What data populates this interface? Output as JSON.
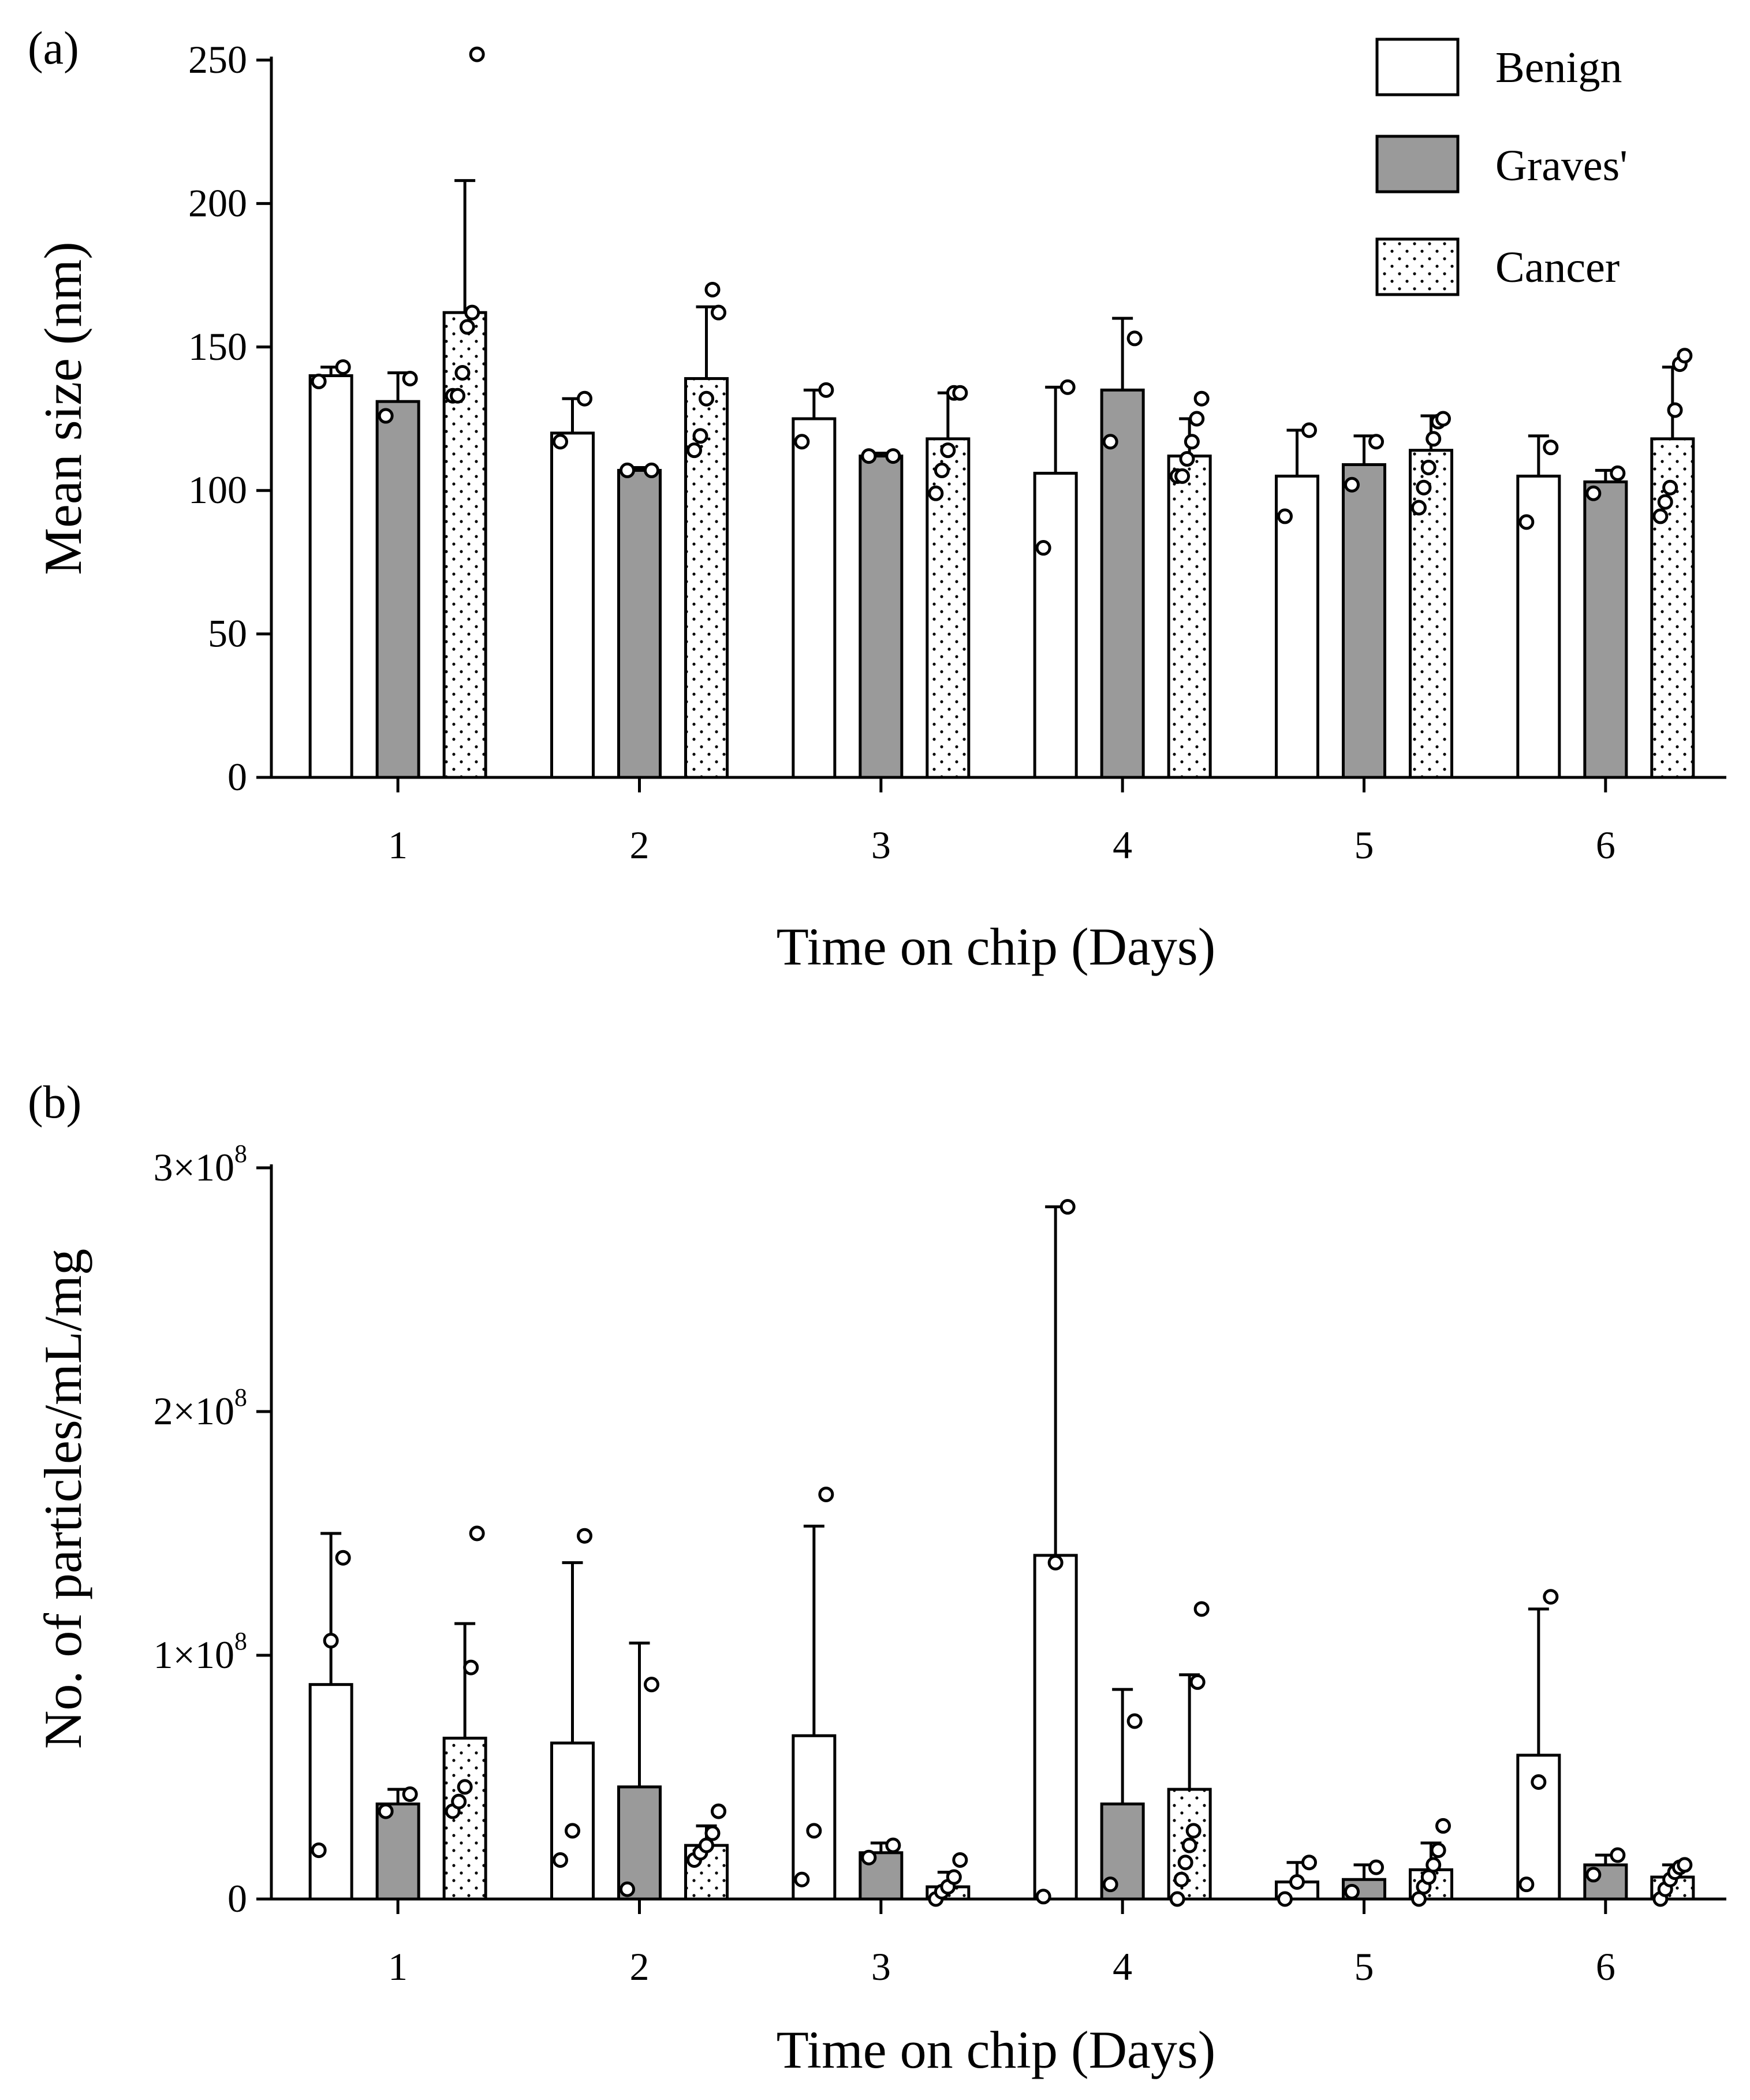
{
  "colors": {
    "benign": "#ffffff",
    "graves": "#9a9a9a",
    "cancer": "#ffffff",
    "stroke": "#000000"
  },
  "legend": [
    {
      "key": "benign",
      "label": "Benign",
      "pattern": "solid-white"
    },
    {
      "key": "graves",
      "label": "Graves'",
      "pattern": "solid-gray"
    },
    {
      "key": "cancer",
      "label": "Cancer",
      "pattern": "dotted"
    }
  ],
  "chart_data": [
    {
      "panel_label": "(a)",
      "type": "bar",
      "xlabel": "Time on chip (Days)",
      "ylabel": "Mean size (nm)",
      "categories": [
        "1",
        "2",
        "3",
        "4",
        "5",
        "6"
      ],
      "ylim": [
        0,
        250
      ],
      "yticks": [
        0,
        50,
        100,
        150,
        200,
        250
      ],
      "ytick_labels": [
        "0",
        "50",
        "100",
        "150",
        "200",
        "250"
      ],
      "series": [
        {
          "name": "Benign",
          "key": "benign",
          "values": [
            140,
            120,
            125,
            106,
            105,
            105
          ],
          "err_upper": [
            143,
            132,
            135,
            136,
            121,
            119
          ],
          "points": [
            [
              138,
              143
            ],
            [
              117,
              132
            ],
            [
              117,
              135
            ],
            [
              80,
              136
            ],
            [
              91,
              121
            ],
            [
              89,
              115
            ]
          ]
        },
        {
          "name": "Graves'",
          "key": "graves",
          "values": [
            131,
            107,
            112,
            135,
            109,
            103
          ],
          "err_upper": [
            141,
            108,
            113,
            160,
            119,
            107
          ],
          "points": [
            [
              126,
              139
            ],
            [
              107,
              107
            ],
            [
              112,
              112
            ],
            [
              117,
              153
            ],
            [
              102,
              117
            ],
            [
              99,
              106
            ]
          ]
        },
        {
          "name": "Cancer",
          "key": "cancer",
          "values": [
            162,
            139,
            118,
            112,
            114,
            118
          ],
          "err_upper": [
            208,
            164,
            134,
            125,
            126,
            143
          ],
          "points": [
            [
              133,
              133,
              141,
              157,
              162,
              252
            ],
            [
              114,
              119,
              132,
              170,
              162
            ],
            [
              99,
              107,
              114,
              134,
              134
            ],
            [
              105,
              105,
              111,
              117,
              125,
              132
            ],
            [
              94,
              101,
              108,
              118,
              124,
              125
            ],
            [
              91,
              96,
              101,
              128,
              144,
              147
            ]
          ]
        }
      ]
    },
    {
      "panel_label": "(b)",
      "type": "bar",
      "xlabel": "Time on chip (Days)",
      "ylabel": "No. of particles/mL/mg",
      "categories": [
        "1",
        "2",
        "3",
        "4",
        "5",
        "6"
      ],
      "ylim": [
        0,
        300000000
      ],
      "yticks": [
        0,
        100000000,
        200000000,
        300000000
      ],
      "ytick_labels": [
        {
          "base": "0",
          "exp": ""
        },
        {
          "base": "1×10",
          "exp": "8"
        },
        {
          "base": "2×10",
          "exp": "8"
        },
        {
          "base": "3×10",
          "exp": "8"
        }
      ],
      "series": [
        {
          "name": "Benign",
          "key": "benign",
          "values": [
            88000000,
            64000000,
            67000000,
            141000000,
            7000000,
            59000000
          ],
          "err_upper": [
            150000000,
            138000000,
            153000000,
            284000000,
            15000000,
            119000000
          ],
          "points": [
            [
              20000000,
              106000000,
              140000000
            ],
            [
              16000000,
              28000000,
              149000000
            ],
            [
              8000000,
              28000000,
              166000000
            ],
            [
              1000000,
              138000000,
              284000000
            ],
            [
              0,
              7000000,
              15000000
            ],
            [
              6000000,
              48000000,
              124000000
            ]
          ]
        },
        {
          "name": "Graves'",
          "key": "graves",
          "values": [
            39000000,
            46000000,
            19000000,
            39000000,
            8000000,
            14000000
          ],
          "err_upper": [
            45000000,
            105000000,
            23000000,
            86000000,
            14000000,
            18000000
          ],
          "points": [
            [
              36000000,
              43000000
            ],
            [
              4000000,
              88000000
            ],
            [
              17000000,
              22000000
            ],
            [
              6000000,
              73000000
            ],
            [
              3000000,
              13000000
            ],
            [
              10000000,
              18000000
            ]
          ]
        },
        {
          "name": "Cancer",
          "key": "cancer",
          "values": [
            66000000,
            22000000,
            5000000,
            45000000,
            12000000,
            9000000
          ],
          "err_upper": [
            113000000,
            30000000,
            11000000,
            92000000,
            23000000,
            14000000
          ],
          "points": [
            [
              36000000,
              40000000,
              46000000,
              95000000,
              150000000
            ],
            [
              16000000,
              19000000,
              22000000,
              27000000,
              36000000
            ],
            [
              0,
              3000000,
              5000000,
              9000000,
              16000000
            ],
            [
              0,
              8000000,
              15000000,
              22000000,
              28000000,
              89000000,
              119000000
            ],
            [
              0,
              5000000,
              9000000,
              14000000,
              20000000,
              30000000
            ],
            [
              0,
              4000000,
              8000000,
              11000000,
              13000000,
              14000000
            ]
          ]
        }
      ]
    }
  ]
}
